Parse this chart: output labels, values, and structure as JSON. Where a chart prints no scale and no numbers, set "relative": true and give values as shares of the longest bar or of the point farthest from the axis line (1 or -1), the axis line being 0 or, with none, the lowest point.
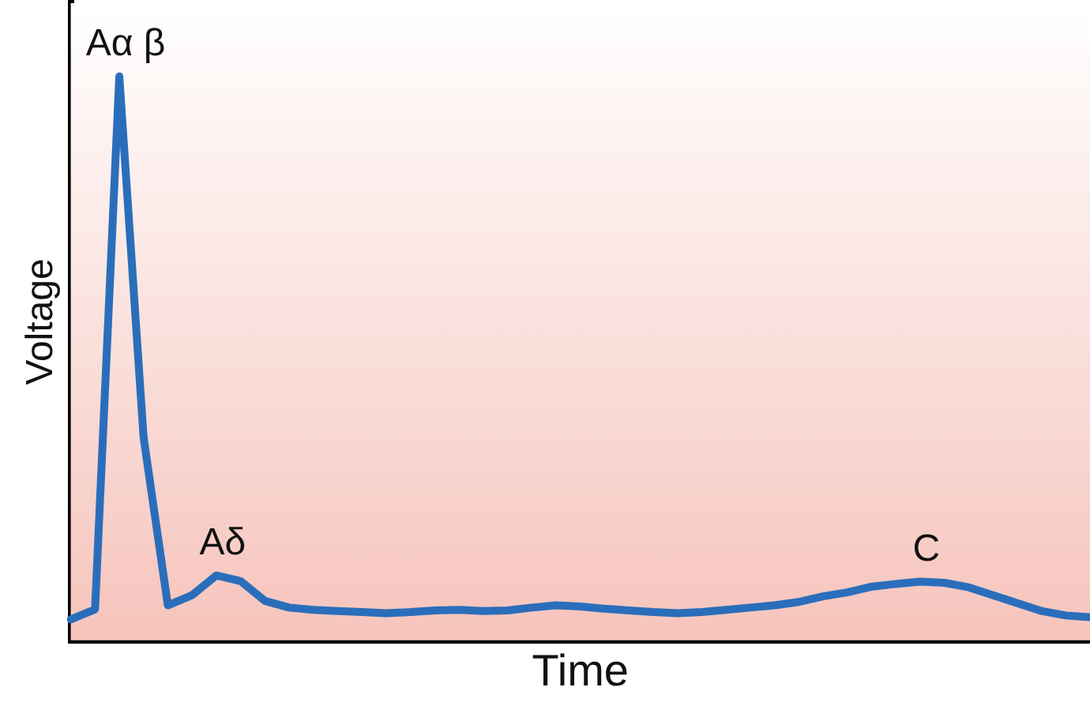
{
  "chart_data": {
    "type": "line",
    "relative": true,
    "xlabel": "Time",
    "ylabel": "Voltage",
    "grid": false,
    "legend": false,
    "marker": "none",
    "categories": [
      null,
      null,
      null,
      null,
      null,
      null,
      null,
      null,
      null,
      null,
      null,
      null,
      null,
      null,
      null,
      null,
      null,
      null,
      null,
      null,
      null,
      null,
      null,
      null,
      null,
      null,
      null,
      null,
      null,
      null,
      null,
      null,
      null,
      null,
      null,
      null,
      null,
      null,
      null,
      null,
      null,
      null,
      null
    ],
    "series": [
      {
        "color": "#2a6ebb",
        "values": [
          0.037,
          0.055,
          1,
          0.36,
          0.062,
          0.08,
          0.115,
          0.105,
          0.07,
          0.058,
          0.054,
          0.052,
          0.05,
          0.048,
          0.05,
          0.053,
          0.054,
          0.052,
          0.053,
          0.058,
          0.062,
          0.06,
          0.056,
          0.053,
          0.05,
          0.048,
          0.05,
          0.054,
          0.058,
          0.062,
          0.068,
          0.078,
          0.085,
          0.095,
          0.1,
          0.104,
          0.102,
          0.094,
          0.08,
          0.066,
          0.052,
          0.044,
          0.041
        ]
      }
    ],
    "annotations": [
      "Aα β",
      "Aδ",
      "C"
    ]
  }
}
